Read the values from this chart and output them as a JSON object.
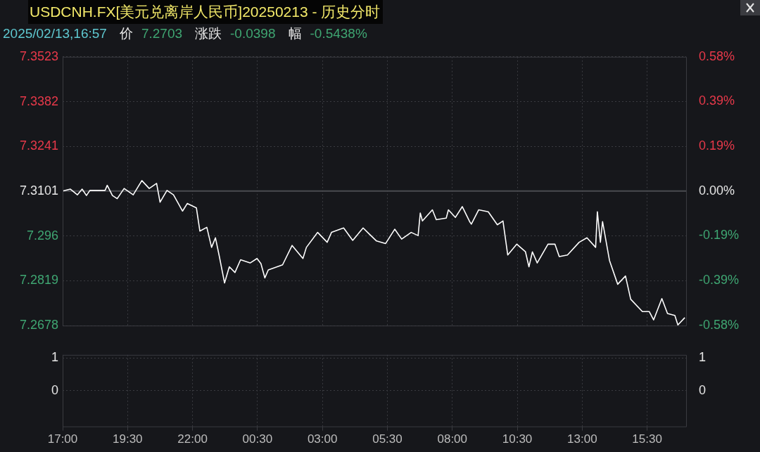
{
  "chart_data": [
    {
      "type": "line",
      "title": "USDCNH.FX[美元兑离岸人民币]20250213 - 历史分时",
      "subtitle": "2025/02/13,16:57",
      "annotations": [
        "价",
        "7.2703",
        "涨跌",
        "-0.0398",
        "幅",
        "-0.5438%"
      ],
      "x": [
        "2025-02-12T17:00",
        "2025-02-12T17:18",
        "2025-02-12T17:34",
        "2025-02-12T17:45",
        "2025-02-12T17:55",
        "2025-02-12T18:03",
        "2025-02-12T18:38",
        "2025-02-12T18:43",
        "2025-02-12T18:55",
        "2025-02-12T19:06",
        "2025-02-12T19:22",
        "2025-02-12T19:43",
        "2025-02-12T20:03",
        "2025-02-12T20:20",
        "2025-02-12T20:37",
        "2025-02-12T20:45",
        "2025-02-12T21:01",
        "2025-02-12T21:16",
        "2025-02-12T21:37",
        "2025-02-12T21:48",
        "2025-02-12T22:09",
        "2025-02-12T22:17",
        "2025-02-12T22:33",
        "2025-02-12T22:44",
        "2025-02-12T22:53",
        "2025-02-12T23:02",
        "2025-02-12T23:14",
        "2025-02-12T23:25",
        "2025-02-12T23:38",
        "2025-02-12T23:51",
        "2025-02-13T00:13",
        "2025-02-13T00:29",
        "2025-02-13T00:38",
        "2025-02-13T00:47",
        "2025-02-13T00:55",
        "2025-02-13T01:28",
        "2025-02-13T01:50",
        "2025-02-13T02:15",
        "2025-02-13T02:23",
        "2025-02-13T02:49",
        "2025-02-13T03:11",
        "2025-02-13T03:21",
        "2025-02-13T03:49",
        "2025-02-13T04:10",
        "2025-02-13T04:34",
        "2025-02-13T04:49",
        "2025-02-13T05:05",
        "2025-02-13T05:26",
        "2025-02-13T05:47",
        "2025-02-13T06:03",
        "2025-02-13T06:25",
        "2025-02-13T06:41",
        "2025-02-13T06:46",
        "2025-02-13T06:51",
        "2025-02-13T07:14",
        "2025-02-13T07:23",
        "2025-02-13T07:46",
        "2025-02-13T07:51",
        "2025-02-13T08:07",
        "2025-02-13T08:23",
        "2025-02-13T08:40",
        "2025-02-13T08:44",
        "2025-02-13T09:01",
        "2025-02-13T09:23",
        "2025-02-13T09:44",
        "2025-02-13T09:57",
        "2025-02-13T10:08",
        "2025-02-13T10:29",
        "2025-02-13T10:49",
        "2025-02-13T10:57",
        "2025-02-13T11:05",
        "2025-02-13T11:16",
        "2025-02-13T11:41",
        "2025-02-13T11:57",
        "2025-02-13T12:07",
        "2025-02-13T12:26",
        "2025-02-13T12:53",
        "2025-02-13T13:11",
        "2025-02-13T13:31",
        "2025-02-13T13:35",
        "2025-02-13T13:42",
        "2025-02-13T13:47",
        "2025-02-13T14:03",
        "2025-02-13T14:22",
        "2025-02-13T14:40",
        "2025-02-13T14:52",
        "2025-02-13T15:19",
        "2025-02-13T15:35",
        "2025-02-13T15:45",
        "2025-02-13T16:04",
        "2025-02-13T16:17",
        "2025-02-13T16:34",
        "2025-02-13T16:41",
        "2025-02-13T16:57"
      ],
      "series": [
        {
          "color": "#ffffff",
          "values": [
            7.3101,
            7.3107,
            7.3089,
            7.3107,
            7.3087,
            7.3103,
            7.3103,
            7.3119,
            7.3087,
            7.3077,
            7.3109,
            7.3089,
            7.3134,
            7.3109,
            7.3125,
            7.3066,
            7.3103,
            7.3089,
            7.3038,
            7.3062,
            7.3048,
            7.2975,
            7.2987,
            7.2924,
            7.2954,
            7.2895,
            7.2812,
            7.2863,
            7.2845,
            7.2885,
            7.2875,
            7.2889,
            7.2873,
            7.2828,
            7.2853,
            7.2869,
            7.293,
            7.2889,
            7.2924,
            7.2971,
            7.294,
            7.2971,
            7.2985,
            7.2946,
            7.2985,
            7.2965,
            7.2944,
            7.2936,
            7.2981,
            7.295,
            7.2971,
            7.2961,
            7.3032,
            7.3007,
            7.3042,
            7.3011,
            7.3016,
            7.3042,
            7.3018,
            7.3052,
            7.3005,
            7.2997,
            7.3042,
            7.3036,
            7.2995,
            7.3007,
            7.29,
            7.2934,
            7.291,
            7.2863,
            7.291,
            7.2875,
            7.2934,
            7.2934,
            7.2895,
            7.29,
            7.294,
            7.2954,
            7.2924,
            7.3036,
            7.294,
            7.3005,
            7.2883,
            7.2808,
            7.2834,
            7.2761,
            7.2722,
            7.2722,
            7.2696,
            7.2763,
            7.2716,
            7.271,
            7.268,
            7.2703
          ]
        }
      ],
      "xlim": [
        "2025-02-12T17:00",
        "2025-02-13T17:00"
      ],
      "xticks": [
        {
          "value": "2025-02-12T17:00",
          "label": null
        },
        {
          "value": "2025-02-12T19:30",
          "label": null
        },
        {
          "value": "2025-02-12T22:00",
          "label": null
        },
        {
          "value": "2025-02-13T00:30",
          "label": null
        },
        {
          "value": "2025-02-13T03:00",
          "label": null
        },
        {
          "value": "2025-02-13T05:30",
          "label": null
        },
        {
          "value": "2025-02-13T08:00",
          "label": null
        },
        {
          "value": "2025-02-13T10:30",
          "label": null
        },
        {
          "value": "2025-02-13T13:00",
          "label": null
        },
        {
          "value": "2025-02-13T15:30",
          "label": null
        }
      ],
      "ylim": [
        7.2678,
        7.3523
      ],
      "yticks": [
        7.3523,
        7.3382,
        7.3241,
        7.3101,
        7.296,
        7.2819,
        7.2678
      ],
      "y2lim": [
        -0.579,
        0.577
      ],
      "y2ticks": [
        {
          "value": 0.577,
          "label": "0.58%"
        },
        {
          "value": 0.386,
          "label": "0.39%"
        },
        {
          "value": 0.192,
          "label": "0.19%"
        },
        {
          "value": 0,
          "label": "0.00%"
        },
        {
          "value": -0.193,
          "label": "-0.19%"
        },
        {
          "value": -0.386,
          "label": "-0.39%"
        },
        {
          "value": -0.579,
          "label": "-0.58%"
        }
      ],
      "ref_lines": [
        {
          "axis": "y",
          "value": 7.3101,
          "color": "#4a4b50"
        }
      ],
      "grid": true,
      "legend": false,
      "marker": "none",
      "line_style": "solid",
      "tick_labels": "y"
    },
    {
      "type": "bar",
      "xlim": [
        "2025-02-12T17:00",
        "2025-02-13T17:00"
      ],
      "xticks": [
        {
          "value": "2025-02-12T17:00",
          "label": "17:00"
        },
        {
          "value": "2025-02-12T19:30",
          "label": "19:30"
        },
        {
          "value": "2025-02-12T22:00",
          "label": "22:00"
        },
        {
          "value": "2025-02-13T00:30",
          "label": "00:30"
        },
        {
          "value": "2025-02-13T03:00",
          "label": "03:00"
        },
        {
          "value": "2025-02-13T05:30",
          "label": "05:30"
        },
        {
          "value": "2025-02-13T08:00",
          "label": "08:00"
        },
        {
          "value": "2025-02-13T10:30",
          "label": "10:30"
        },
        {
          "value": "2025-02-13T13:00",
          "label": "13:00"
        },
        {
          "value": "2025-02-13T15:30",
          "label": "15:30"
        }
      ],
      "ylim": [
        -1.1,
        1.1
      ],
      "yticks": [
        1,
        0
      ],
      "y2lim": [
        -1.1,
        1.1
      ],
      "y2ticks": [
        1,
        0
      ],
      "grid": true,
      "legend": false
    }
  ]
}
